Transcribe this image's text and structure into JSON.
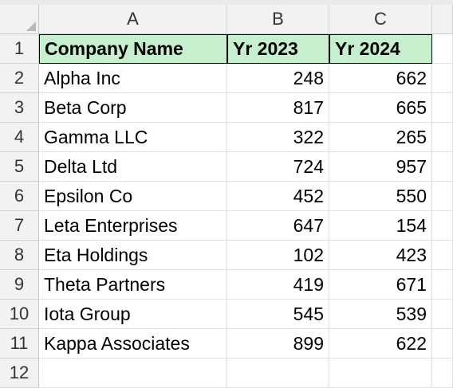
{
  "columns": [
    "A",
    "B",
    "C"
  ],
  "header": [
    "Company Name",
    "Yr 2023",
    "Yr 2024"
  ],
  "rows": [
    {
      "num": "1"
    },
    {
      "num": "2",
      "name": "Alpha Inc",
      "y2023": "248",
      "y2024": "662"
    },
    {
      "num": "3",
      "name": "Beta Corp",
      "y2023": "817",
      "y2024": "665"
    },
    {
      "num": "4",
      "name": "Gamma LLC",
      "y2023": "322",
      "y2024": "265"
    },
    {
      "num": "5",
      "name": "Delta Ltd",
      "y2023": "724",
      "y2024": "957"
    },
    {
      "num": "6",
      "name": "Epsilon Co",
      "y2023": "452",
      "y2024": "550"
    },
    {
      "num": "7",
      "name": "Leta Enterprises",
      "y2023": "647",
      "y2024": "154"
    },
    {
      "num": "8",
      "name": "Eta Holdings",
      "y2023": "102",
      "y2024": "423"
    },
    {
      "num": "9",
      "name": "Theta Partners",
      "y2023": "419",
      "y2024": "671"
    },
    {
      "num": "10",
      "name": "Iota Group",
      "y2023": "545",
      "y2024": "539"
    },
    {
      "num": "11",
      "name": "Kappa Associates",
      "y2023": "899",
      "y2024": "622"
    },
    {
      "num": "12"
    }
  ],
  "colors": {
    "header_fill": "#c6efce",
    "heading_bg": "#f2f2f2"
  }
}
